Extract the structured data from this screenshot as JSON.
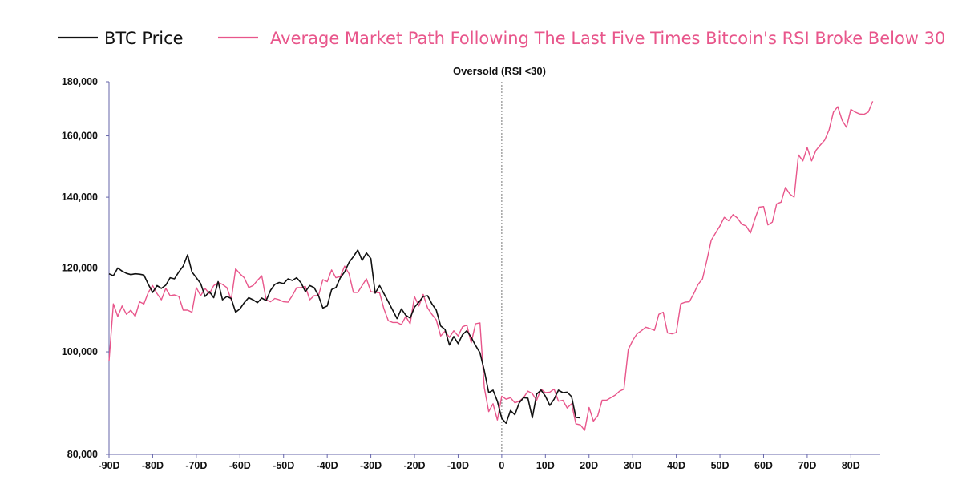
{
  "chart_data": {
    "type": "line",
    "title": "",
    "xlabel": "",
    "ylabel": "",
    "x_range": [
      -90,
      86
    ],
    "y_range": [
      80000,
      180000
    ],
    "y_scale": "log",
    "grid": false,
    "legend_position": "top",
    "annotation": {
      "label": "Oversold (RSI <30)",
      "x": 0
    },
    "y_ticks": [
      {
        "value": 80000,
        "label": "80,000"
      },
      {
        "value": 100000,
        "label": "100,000"
      },
      {
        "value": 120000,
        "label": "120,000"
      },
      {
        "value": 140000,
        "label": "140,000"
      },
      {
        "value": 160000,
        "label": "160,000"
      },
      {
        "value": 180000,
        "label": "180,000"
      }
    ],
    "x_ticks": [
      {
        "value": -90,
        "label": "-90D"
      },
      {
        "value": -80,
        "label": "-80D"
      },
      {
        "value": -70,
        "label": "-70D"
      },
      {
        "value": -60,
        "label": "-60D"
      },
      {
        "value": -50,
        "label": "-50D"
      },
      {
        "value": -40,
        "label": "-40D"
      },
      {
        "value": -30,
        "label": "-30D"
      },
      {
        "value": -20,
        "label": "-20D"
      },
      {
        "value": -10,
        "label": "-10D"
      },
      {
        "value": 0,
        "label": "0"
      },
      {
        "value": 10,
        "label": "10D"
      },
      {
        "value": 20,
        "label": "20D"
      },
      {
        "value": 30,
        "label": "30D"
      },
      {
        "value": 40,
        "label": "40D"
      },
      {
        "value": 50,
        "label": "50D"
      },
      {
        "value": 60,
        "label": "60D"
      },
      {
        "value": 70,
        "label": "70D"
      },
      {
        "value": 80,
        "label": "80D"
      }
    ],
    "series": [
      {
        "name": "BTC Price",
        "color": "#111111",
        "points": [
          [
            -90,
            118500
          ],
          [
            -89,
            118000
          ],
          [
            -88,
            120000
          ],
          [
            -87,
            119200
          ],
          [
            -86,
            118600
          ],
          [
            -85,
            118300
          ],
          [
            -84,
            118500
          ],
          [
            -83,
            118400
          ],
          [
            -82,
            118200
          ],
          [
            -81,
            115800
          ],
          [
            -80,
            113800
          ],
          [
            -79,
            115500
          ],
          [
            -78,
            114800
          ],
          [
            -77,
            115600
          ],
          [
            -76,
            117500
          ],
          [
            -75,
            117200
          ],
          [
            -74,
            119000
          ],
          [
            -73,
            120500
          ],
          [
            -72,
            123500
          ],
          [
            -71,
            119000
          ],
          [
            -70,
            117500
          ],
          [
            -69,
            116000
          ],
          [
            -68,
            112800
          ],
          [
            -67,
            114000
          ],
          [
            -66,
            112500
          ],
          [
            -65,
            116500
          ],
          [
            -64,
            112000
          ],
          [
            -63,
            112800
          ],
          [
            -62,
            112300
          ],
          [
            -61,
            109000
          ],
          [
            -60,
            109800
          ],
          [
            -59,
            111300
          ],
          [
            -58,
            112500
          ],
          [
            -57,
            112000
          ],
          [
            -56,
            111300
          ],
          [
            -55,
            112400
          ],
          [
            -54,
            111800
          ],
          [
            -53,
            114300
          ],
          [
            -52,
            115800
          ],
          [
            -51,
            116300
          ],
          [
            -50,
            116000
          ],
          [
            -49,
            117200
          ],
          [
            -48,
            116800
          ],
          [
            -47,
            117500
          ],
          [
            -46,
            116200
          ],
          [
            -45,
            114000
          ],
          [
            -44,
            115500
          ],
          [
            -43,
            115000
          ],
          [
            -42,
            113000
          ],
          [
            -41,
            110000
          ],
          [
            -40,
            110500
          ],
          [
            -39,
            114500
          ],
          [
            -38,
            115000
          ],
          [
            -37,
            117500
          ],
          [
            -36,
            119000
          ],
          [
            -35,
            121500
          ],
          [
            -34,
            123000
          ],
          [
            -33,
            124800
          ],
          [
            -32,
            122000
          ],
          [
            -31,
            124000
          ],
          [
            -30,
            122500
          ],
          [
            -29,
            113600
          ],
          [
            -28,
            115500
          ],
          [
            -27,
            113500
          ],
          [
            -26,
            111500
          ],
          [
            -25,
            109500
          ],
          [
            -24,
            107500
          ],
          [
            -23,
            109800
          ],
          [
            -22,
            108300
          ],
          [
            -21,
            107600
          ],
          [
            -20,
            110200
          ],
          [
            -19,
            111400
          ],
          [
            -18,
            112800
          ],
          [
            -17,
            113000
          ],
          [
            -16,
            111000
          ],
          [
            -15,
            109500
          ],
          [
            -14,
            105800
          ],
          [
            -13,
            105000
          ],
          [
            -12,
            101500
          ],
          [
            -11,
            103400
          ],
          [
            -10,
            101800
          ],
          [
            -9,
            103800
          ],
          [
            -8,
            104700
          ],
          [
            -7,
            103200
          ],
          [
            -6,
            101400
          ],
          [
            -5,
            99800
          ],
          [
            -4,
            96000
          ],
          [
            -3,
            91500
          ],
          [
            -2,
            92000
          ],
          [
            -1,
            89800
          ],
          [
            0,
            86500
          ],
          [
            1,
            85600
          ],
          [
            2,
            88000
          ],
          [
            3,
            87200
          ],
          [
            4,
            89500
          ],
          [
            5,
            90500
          ],
          [
            6,
            90400
          ],
          [
            7,
            86600
          ],
          [
            8,
            91200
          ],
          [
            9,
            92000
          ],
          [
            10,
            90800
          ],
          [
            11,
            89000
          ],
          [
            12,
            90200
          ],
          [
            13,
            92000
          ],
          [
            14,
            91500
          ],
          [
            15,
            91600
          ],
          [
            16,
            90700
          ],
          [
            17,
            86700
          ],
          [
            18,
            86600
          ]
        ]
      },
      {
        "name": "Average Market Path Following The Last Five Times Bitcoin's RSI Broke Below 30",
        "color": "#e8568b",
        "points": [
          [
            -90,
            98000
          ],
          [
            -89,
            111000
          ],
          [
            -88,
            108000
          ],
          [
            -87,
            110500
          ],
          [
            -86,
            108500
          ],
          [
            -85,
            109500
          ],
          [
            -84,
            108000
          ],
          [
            -83,
            111500
          ],
          [
            -82,
            111000
          ],
          [
            -81,
            113800
          ],
          [
            -80,
            115500
          ],
          [
            -79,
            113500
          ],
          [
            -78,
            112000
          ],
          [
            -77,
            114800
          ],
          [
            -76,
            113000
          ],
          [
            -75,
            113200
          ],
          [
            -74,
            112800
          ],
          [
            -73,
            109500
          ],
          [
            -72,
            109500
          ],
          [
            -71,
            109000
          ],
          [
            -70,
            115000
          ],
          [
            -69,
            113000
          ],
          [
            -68,
            114800
          ],
          [
            -67,
            113500
          ],
          [
            -66,
            115500
          ],
          [
            -65,
            116300
          ],
          [
            -64,
            115800
          ],
          [
            -63,
            115000
          ],
          [
            -62,
            112000
          ],
          [
            -61,
            119800
          ],
          [
            -60,
            118500
          ],
          [
            -59,
            117500
          ],
          [
            -58,
            115000
          ],
          [
            -57,
            115500
          ],
          [
            -56,
            116800
          ],
          [
            -55,
            118000
          ],
          [
            -54,
            112000
          ],
          [
            -53,
            111500
          ],
          [
            -52,
            112300
          ],
          [
            -51,
            112000
          ],
          [
            -50,
            111500
          ],
          [
            -49,
            111400
          ],
          [
            -48,
            113000
          ],
          [
            -47,
            115000
          ],
          [
            -46,
            115000
          ],
          [
            -45,
            115300
          ],
          [
            -44,
            112000
          ],
          [
            -43,
            113000
          ],
          [
            -42,
            113000
          ],
          [
            -41,
            117000
          ],
          [
            -40,
            116500
          ],
          [
            -39,
            119500
          ],
          [
            -38,
            117500
          ],
          [
            -37,
            117800
          ],
          [
            -36,
            120500
          ],
          [
            -35,
            118500
          ],
          [
            -34,
            113800
          ],
          [
            -33,
            113800
          ],
          [
            -32,
            115500
          ],
          [
            -31,
            117200
          ],
          [
            -30,
            114000
          ],
          [
            -29,
            113800
          ],
          [
            -28,
            113700
          ],
          [
            -27,
            109800
          ],
          [
            -26,
            107000
          ],
          [
            -25,
            106600
          ],
          [
            -24,
            106600
          ],
          [
            -23,
            106100
          ],
          [
            -22,
            108000
          ],
          [
            -21,
            106300
          ],
          [
            -20,
            112800
          ],
          [
            -19,
            110500
          ],
          [
            -18,
            113300
          ],
          [
            -17,
            110000
          ],
          [
            -16,
            108500
          ],
          [
            -15,
            107200
          ],
          [
            -14,
            103500
          ],
          [
            -13,
            104600
          ],
          [
            -12,
            103200
          ],
          [
            -11,
            104700
          ],
          [
            -10,
            103500
          ],
          [
            -9,
            105600
          ],
          [
            -8,
            106000
          ],
          [
            -7,
            102000
          ],
          [
            -6,
            106300
          ],
          [
            -5,
            106500
          ],
          [
            -4,
            92500
          ],
          [
            -3,
            87800
          ],
          [
            -2,
            89300
          ],
          [
            -1,
            86200
          ],
          [
            0,
            90800
          ],
          [
            1,
            90200
          ],
          [
            2,
            90500
          ],
          [
            3,
            89500
          ],
          [
            4,
            89800
          ],
          [
            5,
            90500
          ],
          [
            6,
            91800
          ],
          [
            7,
            91300
          ],
          [
            8,
            90000
          ],
          [
            9,
            92200
          ],
          [
            10,
            91500
          ],
          [
            11,
            91600
          ],
          [
            12,
            92200
          ],
          [
            13,
            89800
          ],
          [
            14,
            90000
          ],
          [
            15,
            88500
          ],
          [
            16,
            89300
          ],
          [
            17,
            85500
          ],
          [
            18,
            85300
          ],
          [
            19,
            84300
          ],
          [
            20,
            88600
          ],
          [
            21,
            86000
          ],
          [
            22,
            87000
          ],
          [
            23,
            90000
          ],
          [
            24,
            90000
          ],
          [
            25,
            90500
          ],
          [
            26,
            91000
          ],
          [
            27,
            91800
          ],
          [
            28,
            92200
          ],
          [
            29,
            100500
          ],
          [
            30,
            102500
          ],
          [
            31,
            104000
          ],
          [
            32,
            104700
          ],
          [
            33,
            105500
          ],
          [
            34,
            105200
          ],
          [
            35,
            104800
          ],
          [
            36,
            108500
          ],
          [
            37,
            109000
          ],
          [
            38,
            104200
          ],
          [
            39,
            104000
          ],
          [
            40,
            104300
          ],
          [
            41,
            111000
          ],
          [
            42,
            111400
          ],
          [
            43,
            111500
          ],
          [
            44,
            113500
          ],
          [
            45,
            115800
          ],
          [
            46,
            117200
          ],
          [
            47,
            122000
          ],
          [
            48,
            127500
          ],
          [
            49,
            129500
          ],
          [
            50,
            131500
          ],
          [
            51,
            134000
          ],
          [
            52,
            133000
          ],
          [
            53,
            134800
          ],
          [
            54,
            133800
          ],
          [
            55,
            132000
          ],
          [
            56,
            131500
          ],
          [
            57,
            129500
          ],
          [
            58,
            133500
          ],
          [
            59,
            137000
          ],
          [
            60,
            137200
          ],
          [
            61,
            131800
          ],
          [
            62,
            132600
          ],
          [
            63,
            138000
          ],
          [
            64,
            138500
          ],
          [
            65,
            143000
          ],
          [
            66,
            141000
          ],
          [
            67,
            140000
          ],
          [
            68,
            153500
          ],
          [
            69,
            151500
          ],
          [
            70,
            156000
          ],
          [
            71,
            151500
          ],
          [
            72,
            155000
          ],
          [
            73,
            156800
          ],
          [
            74,
            158500
          ],
          [
            75,
            162000
          ],
          [
            76,
            168500
          ],
          [
            77,
            170500
          ],
          [
            78,
            165500
          ],
          [
            79,
            163000
          ],
          [
            80,
            169500
          ],
          [
            81,
            168500
          ],
          [
            82,
            167800
          ],
          [
            83,
            167700
          ],
          [
            84,
            168500
          ],
          [
            85,
            172500
          ]
        ]
      }
    ]
  }
}
